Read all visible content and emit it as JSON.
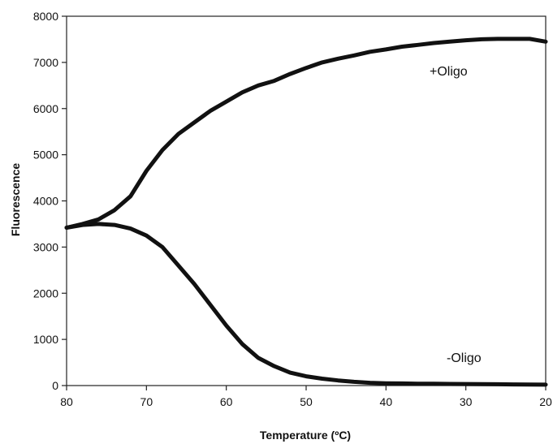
{
  "chart_data": {
    "type": "line",
    "title": "",
    "xlabel": "Temperature (ºC)",
    "ylabel": "Fluorescence",
    "xlim": [
      80,
      20
    ],
    "ylim": [
      0,
      8000
    ],
    "x_ticks": [
      "80",
      "70",
      "60",
      "50",
      "40",
      "30",
      "20"
    ],
    "y_ticks": [
      "0",
      "1000",
      "2000",
      "3000",
      "4000",
      "5000",
      "6000",
      "7000",
      "8000"
    ],
    "grid": false,
    "legend": "none",
    "series": [
      {
        "name": "+Oligo",
        "color": "#111111",
        "x": [
          80,
          78,
          76,
          74,
          72,
          70,
          68,
          66,
          64,
          62,
          60,
          58,
          56,
          54,
          52,
          50,
          48,
          46,
          44,
          42,
          40,
          38,
          36,
          34,
          32,
          30,
          28,
          26,
          24,
          22,
          20
        ],
        "y": [
          3420,
          3500,
          3600,
          3800,
          4100,
          4650,
          5100,
          5450,
          5700,
          5950,
          6150,
          6350,
          6500,
          6600,
          6750,
          6880,
          7000,
          7080,
          7150,
          7230,
          7280,
          7340,
          7380,
          7420,
          7450,
          7480,
          7500,
          7510,
          7510,
          7510,
          7450
        ]
      },
      {
        "name": "-Oligo",
        "color": "#111111",
        "x": [
          80,
          78,
          76,
          74,
          72,
          70,
          68,
          66,
          64,
          62,
          60,
          58,
          56,
          54,
          52,
          50,
          48,
          46,
          44,
          42,
          40,
          38,
          36,
          34,
          32,
          30,
          28,
          26,
          24,
          22,
          20
        ],
        "y": [
          3420,
          3480,
          3500,
          3480,
          3400,
          3250,
          3000,
          2600,
          2200,
          1750,
          1300,
          900,
          600,
          420,
          280,
          200,
          150,
          110,
          80,
          60,
          50,
          45,
          40,
          38,
          35,
          33,
          30,
          28,
          25,
          22,
          20
        ]
      }
    ]
  }
}
